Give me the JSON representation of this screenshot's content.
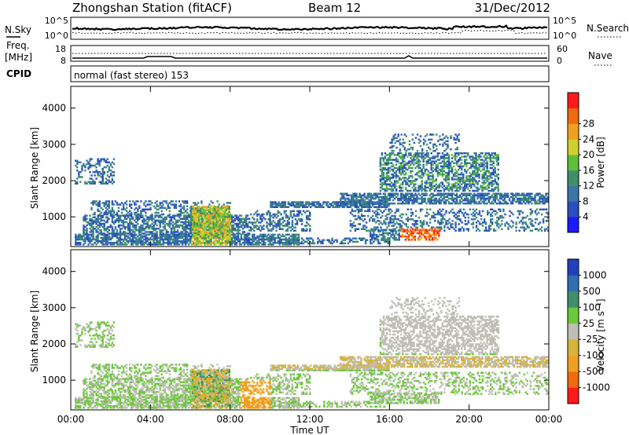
{
  "header": {
    "station": "Zhongshan Station (fitACF)",
    "beam": "Beam 12",
    "date": "31/Dec/2012"
  },
  "strip_labels": {
    "nsky": "N.Sky",
    "nsky_top": "10^5",
    "nsky_bottom": "10^0",
    "nsearch": "N.Search",
    "nsearch_top": "10^5",
    "nsearch_bottom": "10^0",
    "freq_label": "Freq.",
    "freq_unit": "[MHz]",
    "freq_top": "18",
    "freq_bottom": "8",
    "nave": "Nave",
    "nave_top": "60",
    "nave_bottom": "0",
    "cpid_label": "CPID",
    "cpid_value": "normal (fast stereo) 153"
  },
  "colors": {
    "power": [
      "#1a1aff",
      "#2a4fbf",
      "#3a76a8",
      "#3e8f6a",
      "#5fbf3a",
      "#cfd12a",
      "#f0a020",
      "#f06a10",
      "#ff1a1a"
    ],
    "velocity": [
      "#2040c0",
      "#2f6fb0",
      "#3e8f6a",
      "#6cc83a",
      "#bebeb4",
      "#d8b33a",
      "#f0a020",
      "#f06a10",
      "#ff1a1a"
    ]
  },
  "chart_data": [
    {
      "type": "heatmap",
      "panel": "power",
      "ylabel": "Slant Range [km]",
      "yticks": [
        1000,
        2000,
        3000,
        4000
      ],
      "ylim": [
        180,
        4600
      ],
      "xlim": [
        0,
        24
      ],
      "xticks": [
        "00:00",
        "04:00",
        "08:00",
        "12:00",
        "16:00",
        "20:00",
        "00:00"
      ],
      "colorbar": {
        "label": "Power [dB]",
        "ticks": [
          4,
          8,
          12,
          16,
          20,
          24,
          28
        ],
        "range": [
          0,
          30
        ]
      }
    },
    {
      "type": "heatmap",
      "panel": "velocity",
      "ylabel": "Slant Range [km]",
      "yticks": [
        1000,
        2000,
        3000,
        4000
      ],
      "ylim": [
        180,
        4600
      ],
      "xlim": [
        0,
        24
      ],
      "xticks": [
        "00:00",
        "04:00",
        "08:00",
        "12:00",
        "16:00",
        "20:00",
        "00:00"
      ],
      "xlabel": "Time UT",
      "colorbar": {
        "label": "Velocity [m s⁻¹]",
        "ticks": [
          "1000",
          "500",
          "100",
          "25",
          "-25",
          "-100",
          "-500",
          "-1000"
        ]
      }
    }
  ]
}
